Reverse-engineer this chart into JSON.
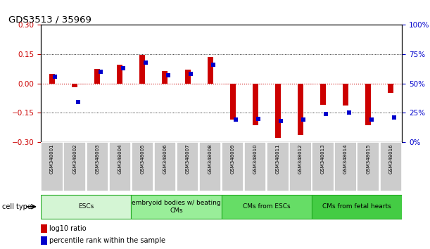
{
  "title": "GDS3513 / 35969",
  "samples": [
    "GSM348001",
    "GSM348002",
    "GSM348003",
    "GSM348004",
    "GSM348005",
    "GSM348006",
    "GSM348007",
    "GSM348008",
    "GSM348009",
    "GSM348010",
    "GSM348011",
    "GSM348012",
    "GSM348013",
    "GSM348014",
    "GSM348015",
    "GSM348016"
  ],
  "log10_ratio": [
    0.05,
    -0.02,
    0.075,
    0.095,
    0.145,
    0.065,
    0.07,
    0.135,
    -0.185,
    -0.215,
    -0.28,
    -0.265,
    -0.11,
    -0.115,
    -0.215,
    -0.05
  ],
  "percentile_rank": [
    56,
    34,
    60,
    63,
    68,
    57,
    58,
    66,
    19,
    20,
    18,
    19,
    24,
    25,
    19,
    21
  ],
  "cell_types": [
    {
      "label": "ESCs",
      "start": 0,
      "end": 4
    },
    {
      "label": "embryoid bodies w/ beating\nCMs",
      "start": 4,
      "end": 8
    },
    {
      "label": "CMs from ESCs",
      "start": 8,
      "end": 12
    },
    {
      "label": "CMs from fetal hearts",
      "start": 12,
      "end": 16
    }
  ],
  "ct_colors": [
    "#d4f5d4",
    "#99ee99",
    "#66dd66",
    "#44cc44"
  ],
  "ct_edge_color": "#22aa22",
  "red_color": "#cc0000",
  "blue_color": "#0000cc",
  "bar_width": 0.25,
  "ylim": [
    -0.3,
    0.3
  ],
  "yticks_left": [
    -0.3,
    -0.15,
    0.0,
    0.15,
    0.3
  ],
  "yticks_right": [
    0,
    25,
    50,
    75,
    100
  ],
  "legend_red": "log10 ratio",
  "legend_blue": "percentile rank within the sample",
  "background_color": "#ffffff",
  "label_box_color": "#cccccc",
  "cell_type_label": "cell type"
}
